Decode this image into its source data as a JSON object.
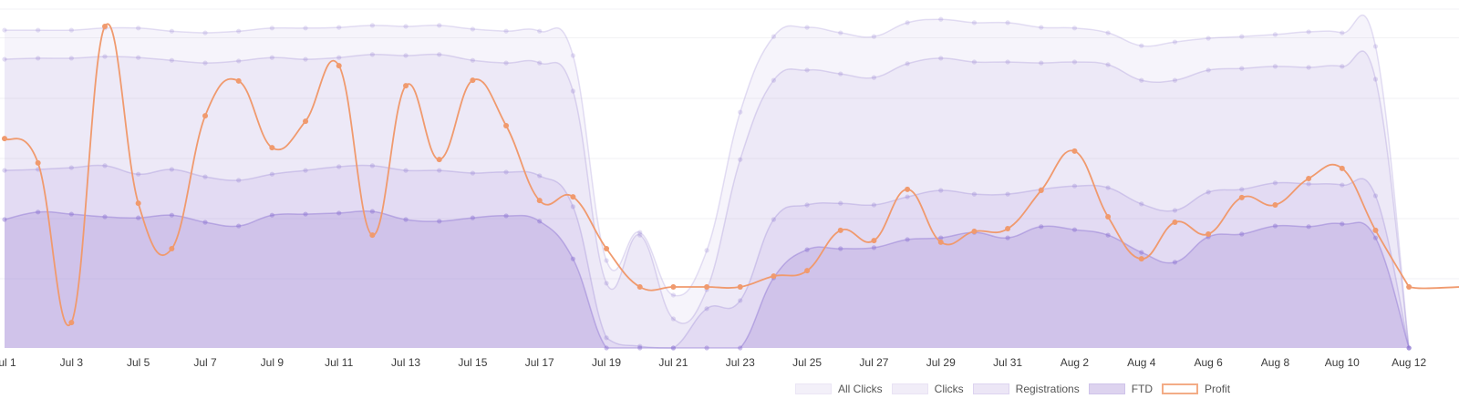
{
  "chart_data": {
    "type": "area",
    "title": "",
    "xlabel": "",
    "ylabel": "",
    "y_axis_labels_shown": false,
    "grid": true,
    "legend_position": "bottom-right",
    "x": [
      "Jul 1",
      "Jul 2",
      "Jul 3",
      "Jul 4",
      "Jul 5",
      "Jul 6",
      "Jul 7",
      "Jul 8",
      "Jul 9",
      "Jul 10",
      "Jul 11",
      "Jul 12",
      "Jul 13",
      "Jul 14",
      "Jul 15",
      "Jul 16",
      "Jul 17",
      "Jul 18",
      "Jul 19",
      "Jul 20",
      "Jul 21",
      "Jul 22",
      "Jul 23",
      "Jul 24",
      "Jul 25",
      "Jul 26",
      "Jul 27",
      "Jul 28",
      "Jul 29",
      "Jul 30",
      "Jul 31",
      "Aug 1",
      "Aug 2",
      "Aug 3",
      "Aug 4",
      "Aug 5",
      "Aug 6",
      "Aug 7",
      "Aug 8",
      "Aug 9",
      "Aug 10",
      "Aug 11",
      "Aug 12"
    ],
    "x_tick_labels": [
      "Jul 1",
      "Jul 3",
      "Jul 5",
      "Jul 7",
      "Jul 9",
      "Jul 11",
      "Jul 13",
      "Jul 15",
      "Jul 17",
      "Jul 19",
      "Jul 21",
      "Jul 23",
      "Jul 25",
      "Jul 27",
      "Jul 29",
      "Jul 31",
      "Aug 2",
      "Aug 4",
      "Aug 6",
      "Aug 8",
      "Aug 10",
      "Aug 12"
    ],
    "ylim": [
      0,
      100
    ],
    "series": [
      {
        "name": "All Clicks",
        "kind": "area",
        "fill": "rgba(160,135,215,0.09)",
        "stroke": "rgba(150,130,210,0.25)",
        "values": [
          93.8,
          93.8,
          93.8,
          94.4,
          94.4,
          93.5,
          93.0,
          93.5,
          94.4,
          94.4,
          94.6,
          95.2,
          94.9,
          95.2,
          94.1,
          93.5,
          93.5,
          86.3,
          25.8,
          34.1,
          15.6,
          28.8,
          69.6,
          91.9,
          94.6,
          93.0,
          91.9,
          96.0,
          97.0,
          96.0,
          96.0,
          94.6,
          94.4,
          93.0,
          89.2,
          90.3,
          91.4,
          91.9,
          92.5,
          93.3,
          93.0,
          89.0,
          0
        ]
      },
      {
        "name": "Clicks",
        "kind": "area",
        "fill": "rgba(160,135,215,0.10)",
        "stroke": "rgba(150,130,210,0.28)",
        "values": [
          85.2,
          85.5,
          85.5,
          86.0,
          85.7,
          84.9,
          84.1,
          84.7,
          85.7,
          85.2,
          85.7,
          86.6,
          86.3,
          86.6,
          84.9,
          84.1,
          84.1,
          75.8,
          19.1,
          33.3,
          8.6,
          17.2,
          55.6,
          79.0,
          82.0,
          80.9,
          79.8,
          83.9,
          85.5,
          84.4,
          84.4,
          84.1,
          84.4,
          83.6,
          79.0,
          79.0,
          82.0,
          82.5,
          83.1,
          82.8,
          83.1,
          79.3,
          0
        ]
      },
      {
        "name": "Registrations",
        "kind": "area",
        "fill": "rgba(160,135,215,0.13)",
        "stroke": "rgba(150,130,210,0.32)",
        "values": [
          52.4,
          52.7,
          53.2,
          53.8,
          51.3,
          52.7,
          50.5,
          49.5,
          51.3,
          52.4,
          53.5,
          53.8,
          52.4,
          52.4,
          51.6,
          51.9,
          50.8,
          41.7,
          3.0,
          0.5,
          0,
          11.6,
          14.0,
          37.9,
          42.2,
          42.7,
          42.2,
          44.6,
          46.5,
          45.4,
          45.4,
          46.8,
          47.8,
          47.3,
          42.5,
          40.6,
          46.0,
          46.8,
          48.7,
          48.4,
          48.1,
          44.9,
          0
        ]
      },
      {
        "name": "FTD",
        "kind": "area",
        "fill": "rgba(165,140,215,0.30)",
        "stroke": "rgba(140,115,210,0.45)",
        "values": [
          37.9,
          40.1,
          39.5,
          38.7,
          38.4,
          39.2,
          37.1,
          36.0,
          39.2,
          39.5,
          39.8,
          40.3,
          37.9,
          37.4,
          38.4,
          39.0,
          37.4,
          26.3,
          0,
          0,
          0,
          0,
          0,
          20.7,
          29.0,
          29.3,
          29.6,
          32.0,
          32.5,
          34.1,
          32.5,
          35.8,
          34.9,
          33.3,
          28.2,
          25.3,
          32.8,
          33.6,
          36.0,
          35.8,
          36.6,
          32.5,
          0
        ]
      },
      {
        "name": "Profit",
        "kind": "line",
        "stroke": "#f09a6e",
        "values": [
          61.8,
          54.6,
          7.5,
          94.9,
          42.7,
          29.3,
          68.5,
          78.8,
          59.1,
          66.9,
          83.3,
          33.3,
          77.4,
          55.6,
          79.0,
          65.6,
          43.5,
          44.6,
          29.3,
          18.0,
          18.0,
          18.0,
          18.0,
          21.2,
          22.8,
          34.7,
          31.7,
          46.8,
          31.2,
          34.4,
          35.2,
          46.5,
          58.1,
          38.7,
          26.3,
          37.1,
          33.6,
          44.4,
          42.2,
          50.0,
          53.0,
          34.7,
          18.0
        ]
      }
    ]
  },
  "legend": [
    {
      "label": "All Clicks",
      "fill": "#f3f0f9",
      "border": "#ebe6f5"
    },
    {
      "label": "Clicks",
      "fill": "#f1edf8",
      "border": "#e9e3f4"
    },
    {
      "label": "Registrations",
      "fill": "#ece6f6",
      "border": "#ddd4f0"
    },
    {
      "label": "FTD",
      "fill": "#ddd3ef",
      "border": "#cfc3ea"
    },
    {
      "label": "Profit",
      "fill": "#ffffff",
      "border": "#f3ac86"
    }
  ]
}
